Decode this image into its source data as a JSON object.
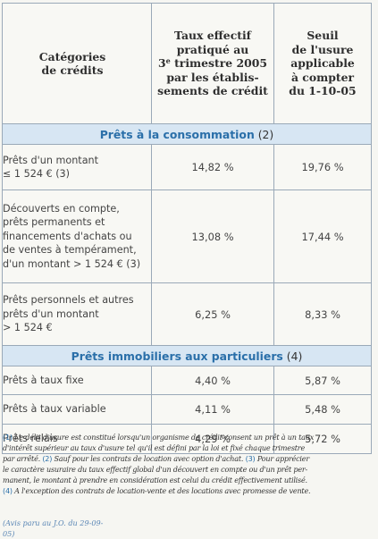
{
  "table": {
    "headers": {
      "category": [
        "Catégories",
        "de crédits"
      ],
      "rate": [
        "Taux effectif",
        "pratiqué au",
        "3e trimestre 2005",
        "par les établis-",
        "sements de crédit"
      ],
      "rate_sup": "e",
      "threshold": [
        "Seuil",
        "de l'usure",
        "applicable",
        "à compter",
        "du 1-10-05"
      ]
    },
    "sections": [
      {
        "title": "Prêts à la consommation",
        "note": "(2)",
        "rows": [
          {
            "label": [
              "Prêts d'un montant",
              "≤ 1 524 € (3)"
            ],
            "rate": "14,82 %",
            "threshold": "19,76 %"
          },
          {
            "label": [
              "Découverts en compte,",
              "prêts permanents et",
              "financements d'achats ou",
              "de ventes à tempérament,",
              "d'un montant > 1 524 € (3)"
            ],
            "rate": "13,08 %",
            "threshold": "17,44 %"
          },
          {
            "label": [
              "Prêts personnels et autres",
              "prêts d'un montant",
              "> 1 524 €"
            ],
            "rate": "6,25 %",
            "threshold": "8,33 %"
          }
        ]
      },
      {
        "title": "Prêts immobiliers aux particuliers",
        "note": "(4)",
        "rows": [
          {
            "label": [
              "Prêts à taux fixe"
            ],
            "rate": "4,40 %",
            "threshold": "5,87 %"
          },
          {
            "label": [
              "Prêts à taux variable"
            ],
            "rate": "4,11 %",
            "threshold": "5,48 %"
          },
          {
            "label": [
              "Prêts relais"
            ],
            "rate": "4,29 %",
            "threshold": "5,72 %"
          }
        ]
      }
    ]
  },
  "footnotes": [
    {
      "num": "(1)",
      "text": "Le délit d'usure est constitué lorsqu'un organisme de crédit consent un prêt à un taux"
    },
    {
      "num": "",
      "text": "d'intérêt supérieur au taux d'usure tel qu'il est défini par la loi et fixé chaque trimestre"
    },
    {
      "num": "",
      "text": "par arrêté.",
      "num2": "(2)",
      "text2": "Sauf pour les contrats de location avec option d'achat.",
      "num3": "(3)",
      "text3": "Pour apprécier"
    },
    {
      "num": "",
      "text": "le caractère usuraire du taux effectif global d'un découvert en compte ou d'un prêt per-"
    },
    {
      "num": "",
      "text": "manent, le montant à prendre en considération est celui du crédit effectivement utilisé."
    },
    {
      "num": "(4)",
      "text": "A l'exception des contrats de location-vente et des locations avec promesse de vente."
    }
  ],
  "source_cut": "(Avis paru au J.O. du 29-09-05)"
}
